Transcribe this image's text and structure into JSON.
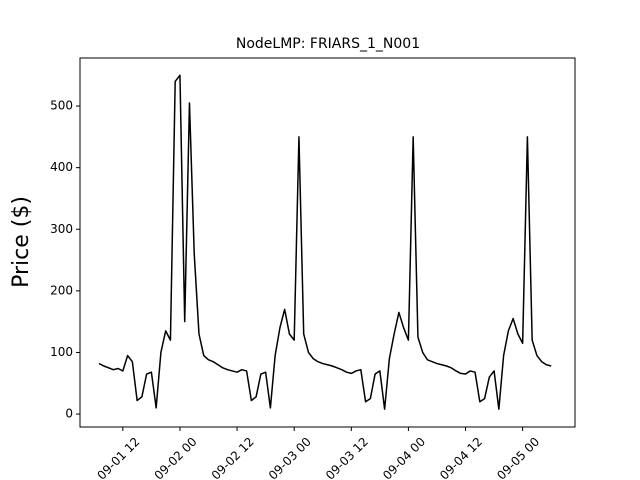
{
  "chart_data": {
    "type": "line",
    "title": "NodeLMP: FRIARS_1_N001",
    "y_label": "Price ($)",
    "x": [
      "09-01 07",
      "09-01 08",
      "09-01 09",
      "09-01 10",
      "09-01 11",
      "09-01 12",
      "09-01 13",
      "09-01 14",
      "09-01 15",
      "09-01 16",
      "09-01 17",
      "09-01 18",
      "09-01 19",
      "09-01 20",
      "09-01 21",
      "09-01 22",
      "09-01 23",
      "09-02 00",
      "09-02 01",
      "09-02 02",
      "09-02 03",
      "09-02 04",
      "09-02 05",
      "09-02 06",
      "09-02 07",
      "09-02 08",
      "09-02 09",
      "09-02 10",
      "09-02 11",
      "09-02 12",
      "09-02 13",
      "09-02 14",
      "09-02 15",
      "09-02 16",
      "09-02 17",
      "09-02 18",
      "09-02 19",
      "09-02 20",
      "09-02 21",
      "09-02 22",
      "09-02 23",
      "09-03 00",
      "09-03 01",
      "09-03 02",
      "09-03 03",
      "09-03 04",
      "09-03 05",
      "09-03 06",
      "09-03 07",
      "09-03 08",
      "09-03 09",
      "09-03 10",
      "09-03 11",
      "09-03 12",
      "09-03 13",
      "09-03 14",
      "09-03 15",
      "09-03 16",
      "09-03 17",
      "09-03 18",
      "09-03 19",
      "09-03 20",
      "09-03 21",
      "09-03 22",
      "09-03 23",
      "09-04 00",
      "09-04 01",
      "09-04 02",
      "09-04 03",
      "09-04 04",
      "09-04 05",
      "09-04 06",
      "09-04 07",
      "09-04 08",
      "09-04 09",
      "09-04 10",
      "09-04 11",
      "09-04 12",
      "09-04 13",
      "09-04 14",
      "09-04 15",
      "09-04 16",
      "09-04 17",
      "09-04 18",
      "09-04 19",
      "09-04 20",
      "09-04 21",
      "09-04 22",
      "09-04 23",
      "09-05 00",
      "09-05 01",
      "09-05 02",
      "09-05 03",
      "09-05 04",
      "09-05 05",
      "09-05 06"
    ],
    "series": [
      {
        "color": "#000000",
        "values": [
          82,
          78,
          75,
          72,
          74,
          70,
          95,
          85,
          22,
          28,
          65,
          68,
          10,
          100,
          135,
          120,
          540,
          550,
          150,
          505,
          260,
          130,
          95,
          88,
          85,
          80,
          75,
          72,
          70,
          68,
          72,
          70,
          22,
          28,
          65,
          68,
          10,
          95,
          140,
          170,
          130,
          120,
          450,
          130,
          100,
          90,
          85,
          82,
          80,
          78,
          75,
          72,
          68,
          66,
          70,
          72,
          20,
          25,
          65,
          70,
          8,
          90,
          130,
          165,
          140,
          120,
          450,
          125,
          100,
          88,
          85,
          82,
          80,
          78,
          75,
          70,
          66,
          65,
          70,
          68,
          20,
          25,
          60,
          70,
          8,
          95,
          135,
          155,
          130,
          115,
          450,
          120,
          95,
          85,
          80,
          78
        ]
      }
    ],
    "xlim": [
      "09-01 03",
      "09-05 11"
    ],
    "xticks": [
      "09-01 12",
      "09-02 00",
      "09-02 12",
      "09-03 00",
      "09-03 12",
      "09-04 00",
      "09-04 12",
      "09-05 00"
    ],
    "ylim": [
      -21,
      578
    ],
    "yticks": [
      0,
      100,
      200,
      300,
      400,
      500
    ]
  }
}
